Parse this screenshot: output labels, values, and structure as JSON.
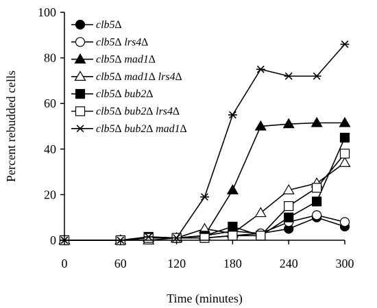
{
  "chart_data": {
    "type": "line",
    "xlabel": "Time (minutes)",
    "ylabel": "Percent rebudded cells",
    "xlim": [
      0,
      300
    ],
    "ylim": [
      0,
      100
    ],
    "xticks": [
      0,
      60,
      120,
      180,
      240,
      300
    ],
    "yticks": [
      0,
      20,
      40,
      60,
      80,
      100
    ],
    "grid": false,
    "legend_position": "top-left",
    "x": [
      0,
      60,
      90,
      120,
      150,
      180,
      210,
      240,
      270,
      300
    ],
    "series": [
      {
        "name": "clb5∆",
        "marker": "circle-filled",
        "values": [
          0,
          0,
          1,
          1,
          2,
          4,
          3,
          5,
          10,
          6
        ]
      },
      {
        "name": "clb5∆ lrs4∆",
        "marker": "circle-open",
        "values": [
          0,
          0,
          1,
          1,
          1,
          2,
          3,
          8,
          11,
          8
        ]
      },
      {
        "name": "clb5∆ mad1∆",
        "marker": "triangle-filled",
        "values": [
          0,
          0,
          1,
          1,
          2,
          22,
          50,
          51,
          51.5,
          51.5
        ]
      },
      {
        "name": "clb5∆ mad1∆ lrs4∆",
        "marker": "triangle-open",
        "values": [
          0,
          0,
          0,
          1,
          5,
          3,
          12,
          22,
          25,
          34
        ]
      },
      {
        "name": "clb5∆ bub2∆",
        "marker": "square-filled",
        "values": [
          0,
          0,
          1.5,
          1,
          2,
          6,
          2,
          10,
          17,
          45
        ]
      },
      {
        "name": "clb5∆ bub2∆ lrs4∆",
        "marker": "square-open",
        "values": [
          0,
          0,
          1,
          1,
          1,
          2,
          2,
          15,
          23,
          38
        ]
      },
      {
        "name": "clb5∆ bub2∆ mad1∆",
        "marker": "star",
        "values": [
          0,
          0,
          1.5,
          1,
          19,
          55,
          75,
          72,
          72,
          86
        ]
      }
    ]
  }
}
